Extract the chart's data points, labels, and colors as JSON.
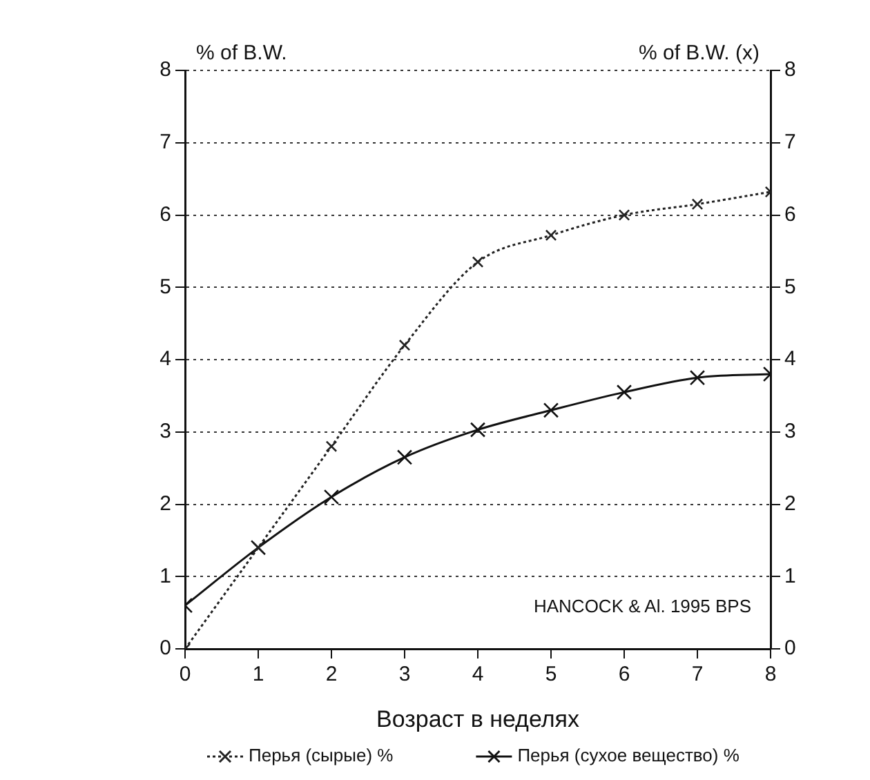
{
  "chart_data": {
    "type": "line",
    "xlabel": "Возраст в неделях",
    "ylabel": "% of B.W.",
    "y2label": "% of B.W. (x)",
    "x": [
      0,
      1,
      2,
      3,
      4,
      5,
      6,
      7,
      8
    ],
    "series": [
      {
        "name": "Перья (сырые) %",
        "color": "#222222",
        "line_style": "dotted",
        "marker": "cross",
        "values": [
          0,
          1.4,
          2.8,
          4.2,
          5.35,
          5.72,
          6.0,
          6.15,
          6.32
        ]
      },
      {
        "name": "Перья (сухое вещество) %",
        "color": "#111111",
        "line_style": "solid",
        "marker": "cross",
        "values": [
          0.6,
          1.4,
          2.1,
          2.65,
          3.03,
          3.3,
          3.55,
          3.75,
          3.8
        ]
      }
    ],
    "xlim": [
      0,
      8
    ],
    "xticks": [
      0,
      1,
      2,
      3,
      4,
      5,
      6,
      7,
      8
    ],
    "ylim": [
      0,
      8
    ],
    "yticks": [
      0,
      1,
      2,
      3,
      4,
      5,
      6,
      7,
      8
    ],
    "y2lim": [
      0,
      8
    ],
    "y2ticks": [
      0,
      1,
      2,
      3,
      4,
      5,
      6,
      7,
      8
    ],
    "grid": "y",
    "legend": "bottom",
    "annotations": [
      "HANCOCK & Al. 1995 BPS"
    ]
  }
}
